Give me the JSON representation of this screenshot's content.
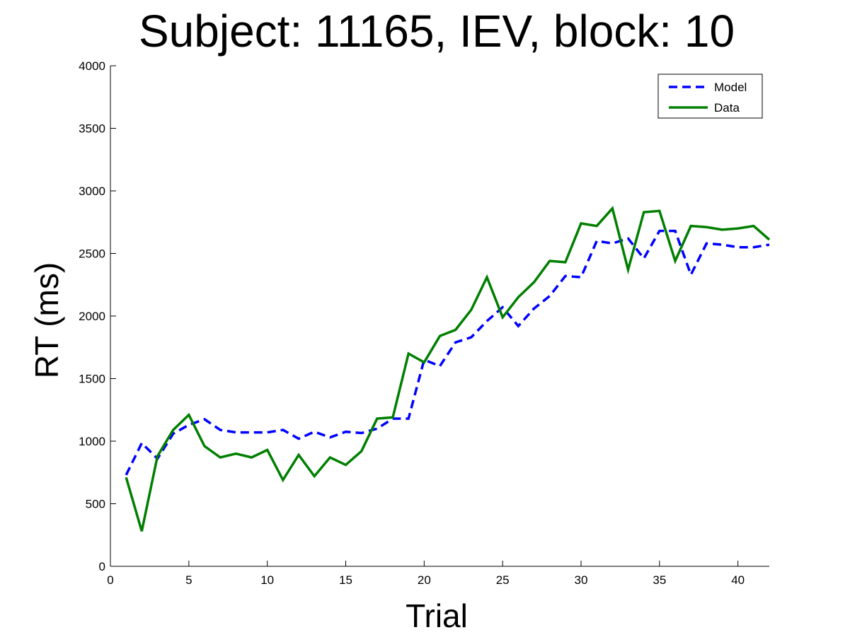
{
  "chart_data": {
    "type": "line",
    "title": "Subject: 11165, IEV, block: 10",
    "xlabel": "Trial",
    "ylabel": "RT (ms)",
    "xlim": [
      0,
      42
    ],
    "ylim": [
      0,
      4000
    ],
    "xticks": [
      0,
      5,
      10,
      15,
      20,
      25,
      30,
      35,
      40
    ],
    "yticks": [
      0,
      500,
      1000,
      1500,
      2000,
      2500,
      3000,
      3500,
      4000
    ],
    "grid": false,
    "legend_position": "top-right",
    "x": [
      1,
      2,
      3,
      4,
      5,
      6,
      7,
      8,
      9,
      10,
      11,
      12,
      13,
      14,
      15,
      16,
      17,
      18,
      19,
      20,
      21,
      22,
      23,
      24,
      25,
      26,
      27,
      28,
      29,
      30,
      31,
      32,
      33,
      34,
      35,
      36,
      37,
      38,
      39,
      40,
      41,
      42
    ],
    "series": [
      {
        "name": "Model",
        "color": "#0000ff",
        "style": "dashed",
        "values": [
          730,
          985,
          860,
          1060,
          1130,
          1175,
          1090,
          1070,
          1070,
          1070,
          1090,
          1020,
          1075,
          1030,
          1075,
          1065,
          1100,
          1180,
          1180,
          1650,
          1600,
          1790,
          1830,
          1960,
          2070,
          1920,
          2060,
          2160,
          2320,
          2310,
          2600,
          2580,
          2620,
          2460,
          2680,
          2680,
          2330,
          2580,
          2570,
          2550,
          2550,
          2570
        ]
      },
      {
        "name": "Data",
        "color": "#007f00",
        "style": "solid",
        "values": [
          710,
          280,
          880,
          1090,
          1210,
          960,
          870,
          900,
          870,
          930,
          690,
          890,
          720,
          870,
          810,
          920,
          1180,
          1190,
          1700,
          1630,
          1840,
          1890,
          2050,
          2310,
          1990,
          2150,
          2270,
          2440,
          2430,
          2740,
          2720,
          2860,
          2370,
          2830,
          2840,
          2440,
          2720,
          2710,
          2690,
          2700,
          2720,
          2610
        ]
      }
    ]
  }
}
